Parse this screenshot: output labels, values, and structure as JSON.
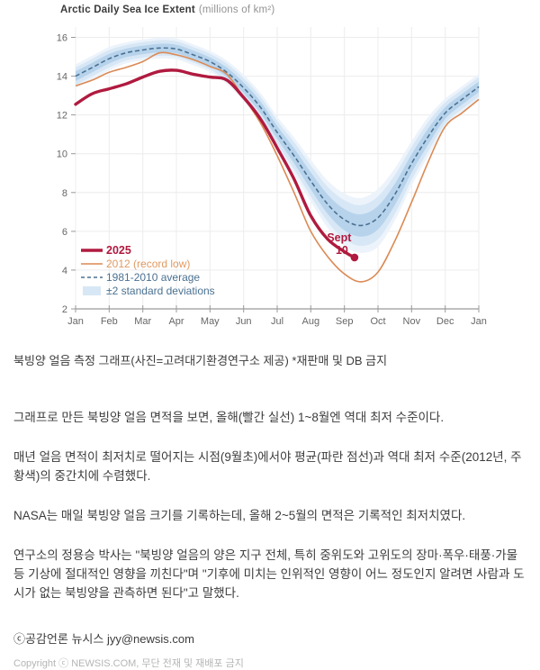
{
  "chart": {
    "title": "Arctic Daily Sea Ice Extent",
    "title_units": "(millions of km²)",
    "annotation": {
      "line1": "Sept",
      "line2": "10"
    },
    "colors": {
      "red": "#b01a3f",
      "orange": "#db8a55",
      "orange_text": "#e09a63",
      "blue": "#4b7191",
      "band_outer": "#ecf3fb",
      "band_mid": "#d7e7f5",
      "band_inner": "#b7d3ec",
      "legend_band_swatch": "#d7e7f5",
      "grid": "#ececec",
      "axis": "#9a9a9a",
      "tick_text": "#666666"
    },
    "legend": [
      {
        "label": "2025",
        "type": "bold-line"
      },
      {
        "label": "2012 (record low)",
        "type": "line"
      },
      {
        "label": "1981-2010 average",
        "type": "dashed"
      },
      {
        "label": "±2 standard deviations",
        "type": "band"
      }
    ]
  },
  "chart_data": {
    "type": "line",
    "title": "Arctic Daily Sea Ice Extent (millions of km²)",
    "xlabel": "",
    "ylabel": "millions of km²",
    "ylim": [
      2,
      16
    ],
    "yticks": [
      2,
      4,
      6,
      8,
      10,
      12,
      14,
      16
    ],
    "grid": true,
    "legend_position": "lower-left",
    "x_months": [
      "Jan",
      "Feb",
      "Mar",
      "Apr",
      "May",
      "Jun",
      "Jul",
      "Aug",
      "Sep",
      "Oct",
      "Nov",
      "Dec",
      "Jan"
    ],
    "x": [
      0,
      0.5,
      1,
      1.5,
      2,
      2.5,
      3,
      3.5,
      4,
      4.5,
      5,
      5.5,
      6,
      6.5,
      7,
      7.5,
      8,
      8.5,
      9,
      9.5,
      10,
      10.5,
      11,
      11.5,
      12
    ],
    "series": [
      {
        "name": "2025",
        "style": "solid-bold",
        "x": [
          0,
          0.5,
          1,
          1.5,
          2,
          2.5,
          3,
          3.5,
          4,
          4.5,
          5,
          5.5,
          6,
          6.5,
          7,
          7.5,
          8,
          8.3
        ],
        "values": [
          12.55,
          13.1,
          13.35,
          13.6,
          13.95,
          14.25,
          14.3,
          14.1,
          13.95,
          13.8,
          12.9,
          11.8,
          10.3,
          8.7,
          6.8,
          5.6,
          4.95,
          4.65
        ]
      },
      {
        "name": "2012 (record low)",
        "style": "solid",
        "values": [
          13.5,
          13.8,
          14.2,
          14.45,
          14.75,
          15.2,
          15.1,
          14.85,
          14.5,
          14.1,
          12.9,
          11.6,
          9.9,
          8.0,
          6.0,
          4.7,
          3.8,
          3.4,
          3.9,
          5.5,
          7.5,
          9.6,
          11.4,
          12.1,
          12.8
        ]
      },
      {
        "name": "1981-2010 average",
        "style": "dashed",
        "values": [
          14.0,
          14.45,
          14.9,
          15.2,
          15.35,
          15.45,
          15.4,
          15.1,
          14.75,
          14.2,
          13.4,
          12.4,
          11.1,
          9.9,
          8.6,
          7.4,
          6.6,
          6.3,
          6.7,
          7.9,
          9.5,
          10.9,
          12.1,
          12.8,
          13.45
        ]
      },
      {
        "name": "±2 standard deviations",
        "style": "band",
        "center_series": "1981-2010 average",
        "delta": [
          0.45,
          0.45,
          0.45,
          0.4,
          0.4,
          0.4,
          0.4,
          0.4,
          0.4,
          0.45,
          0.5,
          0.55,
          0.6,
          0.7,
          0.8,
          0.9,
          1.0,
          1.05,
          1.1,
          1.0,
          0.85,
          0.75,
          0.55,
          0.5,
          0.5
        ]
      }
    ],
    "end_point": {
      "series": "2025",
      "x": 8.3,
      "value": 4.65,
      "label": "Sept 10"
    }
  },
  "article": {
    "caption": "북빙양 얼음 측정 그래프(사진=고려대기환경연구소 제공) *재판매 및 DB 금지",
    "paragraphs": [
      "그래프로 만든 북빙양 얼음 면적을 보면, 올해(빨간 실선) 1~8월엔 역대 최저 수준이다.",
      "매년 얼음 면적이 최저치로 떨어지는 시점(9월초)에서야 평균(파란 점선)과 역대 최저 수준(2012년, 주황색)의 중간치에 수렴했다.",
      "NASA는 매일 북빙양 얼음 크기를 기록하는데, 올해 2~5월의 면적은 기록적인 최저치였다.",
      "연구소의 정용승 박사는 \"북빙양 얼음의 양은 지구 전체, 특히 중위도와 고위도의 장마·폭우·태풍·가물 등 기상에 절대적인 영향을 끼친다\"며 \"기후에 미치는 인위적인 영향이 어느 정도인지 알려면 사람과 도시가 없는 북빙양을 관측하면 된다\"고 말했다."
    ],
    "signoff": "ⓒ공감언론 뉴시스 jyy@newsis.com",
    "copyright": "Copyright ⓒ NEWSIS.COM, 무단 전재 및 재배포 금지"
  }
}
